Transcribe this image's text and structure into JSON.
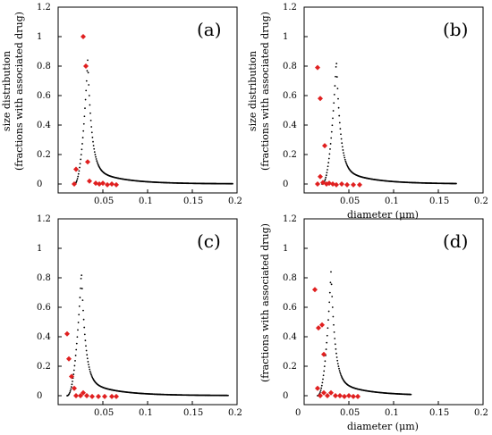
{
  "chart_data": [
    {
      "type": "scatter",
      "panel_label": "(a)",
      "ylabel_line1": "size distribution",
      "ylabel_line2": "(fractions with associated drug)",
      "xlabel": "",
      "xlim": [
        0,
        0.2
      ],
      "ylim": [
        0,
        1.2
      ],
      "xticks": [
        "0.05",
        "0.1",
        "0.15",
        "0.2"
      ],
      "yticks": [
        "0",
        "0.2",
        "0.4",
        "0.6",
        "0.8",
        "1",
        "1.2"
      ],
      "curve_peak": {
        "x": 0.033,
        "y": 0.84,
        "start": 0.018,
        "tail_end": 0.195
      },
      "series": [
        {
          "name": "",
          "color": "#e02020",
          "points": [
            [
              0.018,
              0.0
            ],
            [
              0.02,
              0.1
            ],
            [
              0.028,
              1.0
            ],
            [
              0.031,
              0.8
            ],
            [
              0.033,
              0.15
            ],
            [
              0.035,
              0.02
            ],
            [
              0.042,
              0.005
            ],
            [
              0.046,
              0.0
            ],
            [
              0.05,
              0.005
            ],
            [
              0.055,
              -0.005
            ],
            [
              0.06,
              0.0
            ],
            [
              0.065,
              -0.005
            ]
          ]
        }
      ]
    },
    {
      "type": "scatter",
      "panel_label": "(b)",
      "ylabel_line1": "size distribution",
      "ylabel_line2": "(fractions with associated drug)",
      "xlabel": "diameter (μm)",
      "xlim": [
        0,
        0.2
      ],
      "ylim": [
        0,
        1.2
      ],
      "xticks": [
        "0.05",
        "0.1",
        "0.15",
        "0.2"
      ],
      "yticks": [
        "0",
        "0.2",
        "0.4",
        "0.6",
        "0.8",
        "1",
        "1.2"
      ],
      "curve_peak": {
        "x": 0.036,
        "y": 0.84,
        "start": 0.02,
        "tail_end": 0.17
      },
      "series": [
        {
          "name": "",
          "color": "#e02020",
          "points": [
            [
              0.015,
              0.79
            ],
            [
              0.018,
              0.58
            ],
            [
              0.023,
              0.26
            ],
            [
              0.015,
              0.0
            ],
            [
              0.018,
              0.05
            ],
            [
              0.021,
              0.01
            ],
            [
              0.025,
              0.0
            ],
            [
              0.028,
              0.005
            ],
            [
              0.032,
              0.0
            ],
            [
              0.036,
              -0.005
            ],
            [
              0.042,
              0.0
            ],
            [
              0.048,
              -0.005
            ],
            [
              0.055,
              -0.005
            ],
            [
              0.062,
              -0.005
            ]
          ]
        }
      ]
    },
    {
      "type": "scatter",
      "panel_label": "(c)",
      "ylabel_line1": "",
      "ylabel_line2": "",
      "xlabel": "",
      "xlim": [
        0,
        0.2
      ],
      "ylim": [
        0,
        1.2
      ],
      "xticks": [
        "0.05",
        "0.1",
        "0.15",
        "0.2"
      ],
      "yticks": [
        "0",
        "0.2",
        "0.4",
        "0.6",
        "0.8",
        "1",
        "1.2"
      ],
      "curve_peak": {
        "x": 0.026,
        "y": 0.84,
        "start": 0.01,
        "tail_end": 0.19
      },
      "series": [
        {
          "name": "",
          "color": "#e02020",
          "points": [
            [
              0.01,
              0.42
            ],
            [
              0.012,
              0.25
            ],
            [
              0.015,
              0.13
            ],
            [
              0.018,
              0.05
            ],
            [
              0.02,
              0.0
            ],
            [
              0.025,
              0.0
            ],
            [
              0.028,
              0.02
            ],
            [
              0.032,
              0.0
            ],
            [
              0.038,
              -0.005
            ],
            [
              0.045,
              -0.005
            ],
            [
              0.052,
              -0.005
            ],
            [
              0.06,
              -0.005
            ],
            [
              0.065,
              -0.005
            ]
          ]
        }
      ]
    },
    {
      "type": "scatter",
      "panel_label": "(d)",
      "ylabel_line1": "",
      "ylabel_line2": "(fractions with associated drug)",
      "xlabel": "diameter (μm)",
      "xlim": [
        0,
        0.2
      ],
      "ylim": [
        0,
        1.2
      ],
      "xticks": [
        "0",
        "0.05",
        "0.1",
        "0.15",
        "0.2"
      ],
      "yticks": [
        "0",
        "0.2",
        "0.4",
        "0.6",
        "0.8",
        "1",
        "1.2"
      ],
      "curve_peak": {
        "x": 0.03,
        "y": 0.84,
        "start": 0.015,
        "tail_end": 0.12
      },
      "series": [
        {
          "name": "",
          "color": "#e02020",
          "points": [
            [
              0.012,
              0.72
            ],
            [
              0.016,
              0.46
            ],
            [
              0.02,
              0.48
            ],
            [
              0.022,
              0.28
            ],
            [
              0.015,
              0.05
            ],
            [
              0.018,
              0.0
            ],
            [
              0.022,
              0.02
            ],
            [
              0.026,
              0.0
            ],
            [
              0.03,
              0.02
            ],
            [
              0.035,
              0.0
            ],
            [
              0.04,
              0.0
            ],
            [
              0.045,
              -0.005
            ],
            [
              0.05,
              0.0
            ],
            [
              0.055,
              -0.005
            ],
            [
              0.06,
              -0.005
            ]
          ]
        }
      ]
    }
  ]
}
